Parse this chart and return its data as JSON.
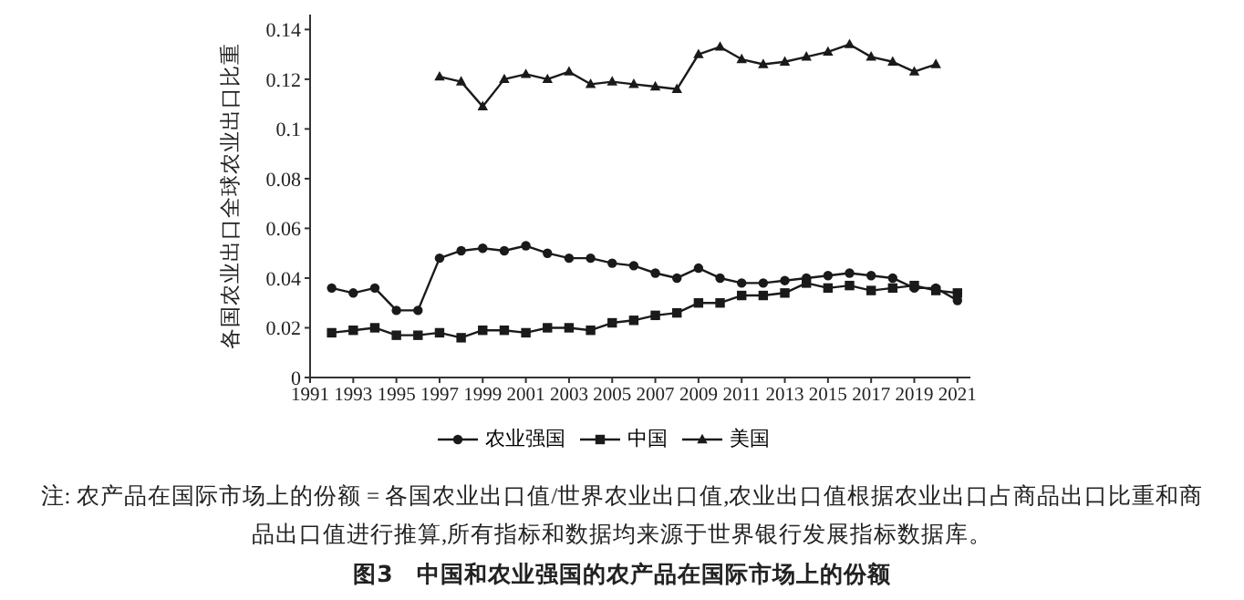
{
  "chart_data": {
    "type": "line",
    "title": "图3　中国和农业强国的农产品在国际市场上的份额",
    "ylabel": "各国农业出口全球农业出口比重",
    "annotations": [
      "注: 农产品在国际市场上的份额 = 各国农业出口值/世界农业出口值,农业出口值根据农业出口占商品出口比重和商品出口值进行推算,所有指标和数据均来源于世界银行发展指标数据库。"
    ],
    "x": [
      1992,
      1993,
      1994,
      1995,
      1996,
      1997,
      1998,
      1999,
      2000,
      2001,
      2002,
      2003,
      2004,
      2005,
      2006,
      2007,
      2008,
      2009,
      2010,
      2011,
      2012,
      2013,
      2014,
      2015,
      2016,
      2017,
      2018,
      2019,
      2020,
      2021
    ],
    "series": [
      {
        "name": "农业强国",
        "color": "#1a1a1a",
        "marker": "circle",
        "values": [
          0.036,
          0.034,
          0.036,
          0.027,
          0.027,
          0.048,
          0.051,
          0.052,
          0.051,
          0.053,
          0.05,
          0.048,
          0.048,
          0.046,
          0.045,
          0.042,
          0.04,
          0.044,
          0.04,
          0.038,
          0.038,
          0.039,
          0.04,
          0.041,
          0.042,
          0.041,
          0.04,
          0.036,
          0.036,
          0.031
        ]
      },
      {
        "name": "中国",
        "color": "#1a1a1a",
        "marker": "square",
        "values": [
          0.018,
          0.019,
          0.02,
          0.017,
          0.017,
          0.018,
          0.016,
          0.019,
          0.019,
          0.018,
          0.02,
          0.02,
          0.019,
          0.022,
          0.023,
          0.025,
          0.026,
          0.03,
          0.03,
          0.033,
          0.033,
          0.034,
          0.038,
          0.036,
          0.037,
          0.035,
          0.036,
          0.037,
          0.035,
          0.034
        ]
      },
      {
        "name": "美国",
        "color": "#1a1a1a",
        "marker": "triangle",
        "values": [
          null,
          null,
          null,
          null,
          null,
          0.121,
          0.119,
          0.109,
          0.12,
          0.122,
          0.12,
          0.123,
          0.118,
          0.119,
          0.118,
          0.117,
          0.116,
          0.13,
          0.133,
          0.128,
          0.126,
          0.127,
          0.129,
          0.131,
          0.134,
          0.129,
          0.127,
          0.123,
          0.126,
          null
        ]
      }
    ],
    "xlim": [
      1991,
      2021.6
    ],
    "xticks": [
      1991,
      1993,
      1995,
      1997,
      1999,
      2001,
      2003,
      2005,
      2007,
      2009,
      2011,
      2013,
      2015,
      2017,
      2019,
      2021
    ],
    "ylim": [
      0,
      0.146
    ],
    "yticks": [
      0,
      0.02,
      0.04,
      0.06,
      0.08,
      0.1,
      0.12,
      0.14
    ],
    "grid": false,
    "legend": "bottom"
  }
}
